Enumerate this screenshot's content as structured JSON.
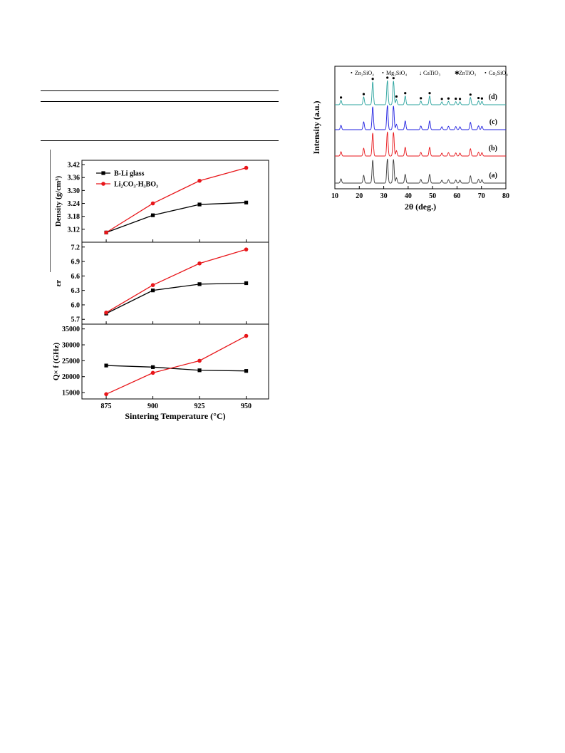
{
  "chart_data": [
    {
      "type": "line",
      "panels": [
        {
          "ylabel": "Density (g/cm³)",
          "ylim": [
            3.06,
            3.44
          ],
          "yticks": [
            "3.12",
            "3.18",
            "3.24",
            "3.30",
            "3.36",
            "3.42"
          ],
          "series": [
            {
              "name": "B-Li glass",
              "color": "#000000",
              "marker": "square",
              "values": [
                3.105,
                3.185,
                3.235,
                3.244
              ]
            },
            {
              "name": "Li₂CO₃-H₃BO₃",
              "color": "#e8161a",
              "marker": "circle",
              "values": [
                3.105,
                3.24,
                3.345,
                3.405
              ]
            }
          ]
        },
        {
          "ylabel": "εr",
          "ylim": [
            5.6,
            7.3
          ],
          "yticks": [
            "5.7",
            "6.0",
            "6.3",
            "6.6",
            "6.9",
            "7.2"
          ],
          "series": [
            {
              "name": "B-Li glass",
              "color": "#000000",
              "marker": "square",
              "values": [
                5.82,
                6.3,
                6.43,
                6.45
              ]
            },
            {
              "name": "Li₂CO₃-H₃BO₃",
              "color": "#e8161a",
              "marker": "circle",
              "values": [
                5.84,
                6.41,
                6.86,
                7.15
              ]
            }
          ]
        },
        {
          "ylabel": "Q× f (GHz)",
          "ylim": [
            13000,
            36500
          ],
          "yticks": [
            "15000",
            "20000",
            "25000",
            "30000",
            "35000"
          ],
          "series": [
            {
              "name": "B-Li glass",
              "color": "#000000",
              "marker": "square",
              "values": [
                23500,
                23000,
                22000,
                21800
              ]
            },
            {
              "name": "Li₂CO₃-H₃BO₃",
              "color": "#e8161a",
              "marker": "circle",
              "values": [
                14500,
                21200,
                25000,
                32800
              ]
            }
          ]
        }
      ],
      "x": [
        875,
        900,
        925,
        950
      ],
      "xticks": [
        "875",
        "900",
        "925",
        "950"
      ],
      "xlim": [
        862,
        962
      ],
      "xlabel": "Sintering Temperature (°C)",
      "legend": {
        "placement": "top-left",
        "entries": [
          "B-Li glass",
          "Li₂CO₃-H₃BO₃"
        ]
      },
      "grid": false
    },
    {
      "type": "line",
      "xlabel": "2θ (deg.)",
      "ylabel": "Intensity (a.u.)",
      "xlim": [
        10,
        80
      ],
      "xticks": [
        "10",
        "20",
        "30",
        "40",
        "50",
        "60",
        "70",
        "80"
      ],
      "legend_entries": [
        {
          "symbol": "•",
          "label": "Zn₂SiO₄"
        },
        {
          "symbol": "•",
          "label": "Mg₂SiO₄"
        },
        {
          "symbol": "↓",
          "label": "CaTiO₃"
        },
        {
          "symbol": "✱",
          "label": "ZnTiO₃"
        },
        {
          "symbol": "•",
          "label": "Ca₂SiO₄"
        }
      ],
      "series": [
        {
          "name": "(a)",
          "color": "#3a3a3a"
        },
        {
          "name": "(b)",
          "color": "#e8161a"
        },
        {
          "name": "(c)",
          "color": "#1f1fe0"
        },
        {
          "name": "(d)",
          "color": "#2aa39e"
        }
      ],
      "peaks_2theta": [
        12.5,
        21.8,
        25.5,
        31.5,
        34.0,
        35.2,
        38.8,
        45.2,
        48.8,
        53.8,
        56.5,
        59.5,
        61.2,
        65.5,
        68.8,
        70.2
      ],
      "peaks_rel_intensity": [
        0.18,
        0.32,
        0.95,
        1.0,
        0.98,
        0.22,
        0.36,
        0.15,
        0.36,
        0.12,
        0.14,
        0.13,
        0.12,
        0.3,
        0.16,
        0.14
      ]
    }
  ]
}
